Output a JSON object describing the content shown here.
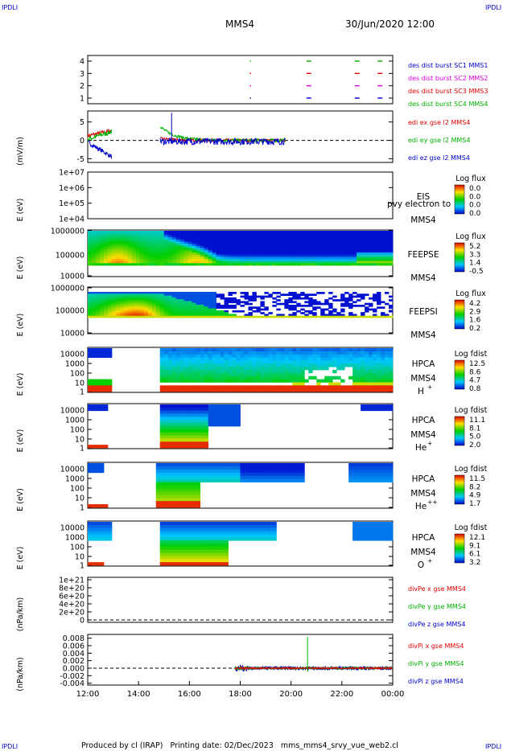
{
  "corner_label": "IPDLI",
  "header": {
    "spacecraft": "MMS4",
    "datetime": "30/Jun/2020 12:00"
  },
  "footer": "Produced by cl (IRAP)   Printing date: 02/Dec/2023   mms_mms4_srvy_vue_web2.cl",
  "colors": {
    "red": "#e00000",
    "green": "#00b000",
    "blue": "#0000cc",
    "magenta": "#e000e0"
  },
  "chart_data": {
    "type": "stacked-timeseries",
    "x_ticks": [
      "12:00",
      "14:00",
      "16:00",
      "18:00",
      "20:00",
      "22:00",
      "00:00"
    ],
    "x_range_hours": [
      12,
      24
    ],
    "panels": [
      {
        "id": "burst",
        "type": "scatter",
        "yticks": [
          "4",
          "3",
          "2",
          "1"
        ],
        "legend": [
          {
            "text": "des dist burst SC1 MMS1",
            "color": "#0000cc"
          },
          {
            "text": "des dist burst SC2 MMS2",
            "color": "#e000e0"
          },
          {
            "text": "des dist burst SC3 MMS3",
            "color": "#e00000"
          },
          {
            "text": "des dist burst SC4 MMS4",
            "color": "#00b000"
          }
        ],
        "segments_hours": [
          18.4,
          20.7,
          22.6,
          23.5
        ]
      },
      {
        "id": "edi",
        "type": "line",
        "ylabel": "(mV/m)",
        "yticks": [
          "5",
          "0",
          "-5"
        ],
        "ylim": [
          -6,
          8
        ],
        "legend": [
          {
            "text": "edi ex gse l2 MMS4",
            "color": "#e00000"
          },
          {
            "text": "edi ey gse l2 MMS4",
            "color": "#00b000"
          },
          {
            "text": "edi ez gse l2 MMS4",
            "color": "#0000cc"
          }
        ]
      },
      {
        "id": "eis",
        "type": "heatmap",
        "ylabel": "E (eV)",
        "yticks": [
          "1e+07",
          "1e+06",
          "1e+05",
          "1e+04"
        ],
        "instrument": [
          "EIS",
          "MMS4"
        ],
        "overlay": "pvy electron to",
        "cbar_title": "Log flux",
        "cbar_ticks": [
          "0.0",
          "0.0",
          "0.0",
          "0.0"
        ]
      },
      {
        "id": "feepse",
        "type": "heatmap",
        "ylabel": "E (eV)",
        "yticks": [
          "1000000",
          "100000",
          "10000"
        ],
        "instrument": [
          "FEEPSE",
          "MMS4"
        ],
        "cbar_title": "Log flux",
        "cbar_ticks": [
          "5.2",
          "3.3",
          "1.4",
          "-0.5"
        ]
      },
      {
        "id": "feepsi",
        "type": "heatmap",
        "ylabel": "E (eV)",
        "yticks": [
          "1000000",
          "100000",
          "10000"
        ],
        "instrument": [
          "FEEPSI",
          "MMS4"
        ],
        "cbar_title": "Log flux",
        "cbar_ticks": [
          "4.2",
          "2.9",
          "1.6",
          "0.2"
        ]
      },
      {
        "id": "hpca_h",
        "type": "heatmap",
        "ylabel": "E (eV)",
        "yticks": [
          "10000",
          "1000",
          "100",
          "10",
          "1"
        ],
        "instrument": [
          "HPCA",
          "MMS4",
          "H",
          "+"
        ],
        "cbar_title": "Log fdist",
        "cbar_ticks": [
          "12.5",
          "8.6",
          "4.7",
          "0.8"
        ]
      },
      {
        "id": "hpca_he",
        "type": "heatmap",
        "ylabel": "E (eV)",
        "yticks": [
          "10000",
          "1000",
          "100",
          "10",
          "1"
        ],
        "instrument": [
          "HPCA",
          "MMS4",
          "He",
          "+"
        ],
        "cbar_title": "Log fdist",
        "cbar_ticks": [
          "11.1",
          "8.1",
          "5.0",
          "2.0"
        ]
      },
      {
        "id": "hpca_hepp",
        "type": "heatmap",
        "ylabel": "E (eV)",
        "yticks": [
          "10000",
          "1000",
          "100",
          "10",
          "1"
        ],
        "instrument": [
          "HPCA",
          "MMS4",
          "He",
          "++"
        ],
        "cbar_title": "Log fdist",
        "cbar_ticks": [
          "11.5",
          "8.2",
          "4.9",
          "1.7"
        ]
      },
      {
        "id": "hpca_o",
        "type": "heatmap",
        "ylabel": "E (eV)",
        "yticks": [
          "10000",
          "1000",
          "100",
          "10",
          "1"
        ],
        "instrument": [
          "HPCA",
          "MMS4",
          "O",
          "+"
        ],
        "cbar_title": "Log fdist",
        "cbar_ticks": [
          "12.1",
          "9.1",
          "6.1",
          "3.2"
        ]
      },
      {
        "id": "divpe",
        "type": "line",
        "ylabel": "(nPa/km)",
        "yticks": [
          "1e+21",
          "8e+20",
          "6e+20",
          "4e+20",
          "2e+20",
          "0"
        ],
        "legend": [
          {
            "text": "divPe x gse MMS4",
            "color": "#e00000"
          },
          {
            "text": "divPe y gse MMS4",
            "color": "#00b000"
          },
          {
            "text": "divPe z gse MMS4",
            "color": "#0000cc"
          }
        ]
      },
      {
        "id": "divpi",
        "type": "line",
        "ylabel": "(nPa/km)",
        "yticks": [
          "0.008",
          "0.006",
          "0.004",
          "0.002",
          "0.000",
          "-0.002",
          "-0.004"
        ],
        "ylim": [
          -0.0045,
          0.009
        ],
        "legend": [
          {
            "text": "divPi x gse MMS4",
            "color": "#e00000"
          },
          {
            "text": "divPi y gse MMS4",
            "color": "#00b000"
          },
          {
            "text": "divPi z gse MMS4",
            "color": "#0000cc"
          }
        ]
      }
    ]
  }
}
